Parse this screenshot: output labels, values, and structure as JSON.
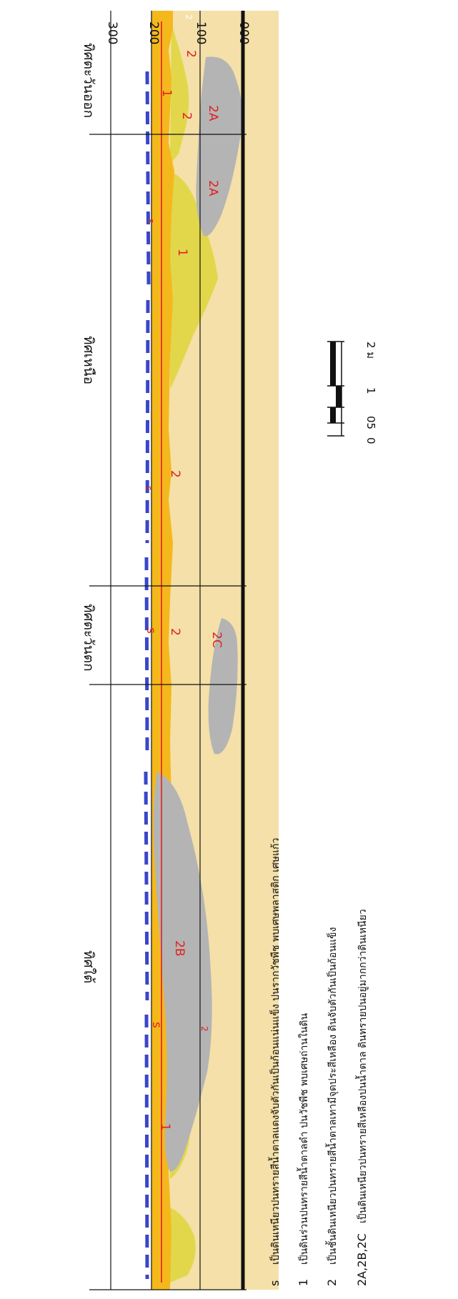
{
  "section": {
    "directions": [
      {
        "name": "direction-south",
        "label": "ทิศใต้"
      },
      {
        "name": "direction-west",
        "label": "ทิศตะวันตก"
      },
      {
        "name": "direction-north",
        "label": "ทิศเหนือ"
      },
      {
        "name": "direction-east",
        "label": "ทิศตะวันออก"
      }
    ],
    "depth_labels": [
      "300",
      "200",
      "100",
      "000"
    ],
    "layer_labels": {
      "s": "s",
      "one": "1",
      "two": "2",
      "2A": "2A",
      "2B": "2B",
      "2C": "2C"
    },
    "colors": {
      "background_soil": "#f4e0a8",
      "surface_orange": "#f5b81c",
      "layer1_yellow": "#e0d640",
      "gray_lens": "#b4b4b4",
      "blue_edge": "#3a46c8",
      "label_red": "#e02020",
      "grid_line": "#111111"
    }
  },
  "scale_bar": {
    "labels": [
      "0",
      "05",
      "1",
      "2 ม"
    ]
  },
  "legend": [
    {
      "key": "s",
      "text": "เป็นดินเหนียวปนทรายสีน้ำตาลแดงจับตัวกันเป็นก้อนแน่นแข็ง ปนรากวัชพืช พบเศษพลาสติก เศษแก้ว"
    },
    {
      "key": "1",
      "text": "เป็นดินร่วนปนทรายสีน้ำตาลดำ ปนวัชพืช พบเศษถ่านในดิน"
    },
    {
      "key": "2",
      "text": "เป็นชั้นดินเหนียวปนทรายสีน้ำตาลเทามีจุดประสีเหลือง ดินจับตัวกันเป็นก้อนแข็ง"
    },
    {
      "key": "2A,2B,2C",
      "text": "เป็นดินเหนียวปนทรายสีเหลืองปนน้ำตาล ดินทรายปนอยู่มากกว่าดินเหนียว"
    }
  ]
}
